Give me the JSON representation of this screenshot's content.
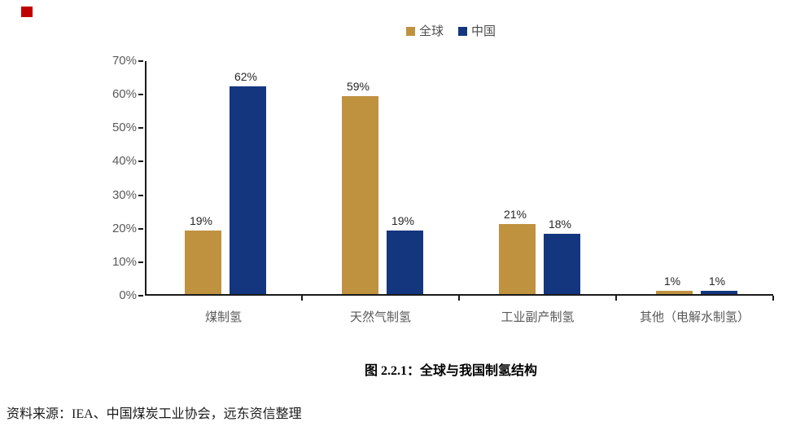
{
  "decor": {
    "red_marker_color": "#C00000"
  },
  "chart_data": {
    "type": "bar",
    "categories": [
      "煤制氢",
      "天然气制氢",
      "工业副产制氢",
      "其他（电解水制氢）"
    ],
    "series": [
      {
        "name": "全球",
        "color": "#BF9240",
        "values": [
          19,
          59,
          21,
          1
        ]
      },
      {
        "name": "中国",
        "color": "#14367F",
        "values": [
          62,
          19,
          18,
          1
        ]
      }
    ],
    "value_suffix": "%",
    "y_ticks": [
      "0%",
      "10%",
      "20%",
      "30%",
      "40%",
      "50%",
      "60%",
      "70%"
    ],
    "ylim": [
      0,
      70
    ],
    "grid": false,
    "legend_position": "top-center",
    "axis_color": "#1a1a1a",
    "tick_label_color": "#595959",
    "data_label_color": "#262626"
  },
  "caption": {
    "title": "图 2.2.1：全球与我国制氢结构"
  },
  "source": {
    "text": "资料来源：IEA、中国煤炭工业协会，远东资信整理"
  }
}
